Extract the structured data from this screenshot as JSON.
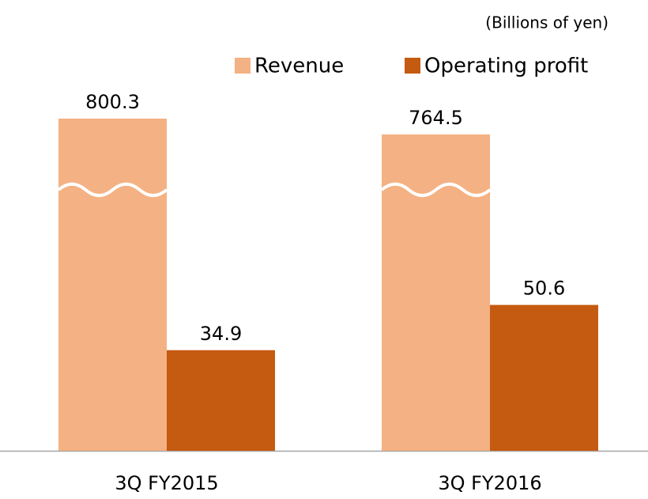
{
  "chart_data": {
    "type": "bar",
    "unit_label": "(Billions of yen)",
    "categories": [
      "3Q FY2015",
      "3Q FY2016"
    ],
    "series": [
      {
        "name": "Revenue",
        "color": "#f4b183",
        "values": [
          800.3,
          764.5
        ],
        "broken": true
      },
      {
        "name": "Operating profit",
        "color": "#c55a11",
        "values": [
          34.9,
          50.6
        ]
      }
    ],
    "ylim": [
      0,
      90
    ],
    "legend": "top-right"
  }
}
